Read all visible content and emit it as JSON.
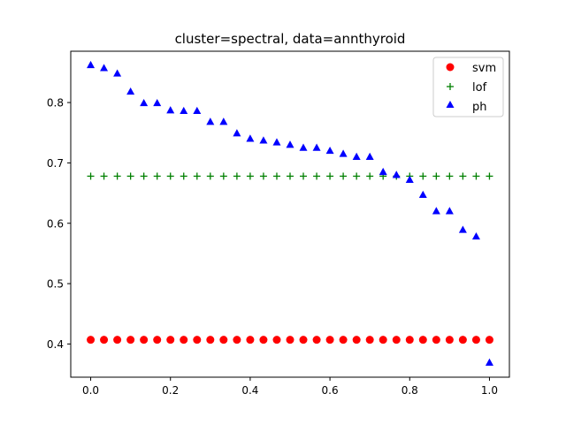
{
  "chart_data": {
    "type": "scatter",
    "title": "cluster=spectral, data=annthyroid",
    "xlabel": "",
    "ylabel": "",
    "xlim": [
      -0.05,
      1.05
    ],
    "ylim": [
      0.345,
      0.885
    ],
    "xticks": [
      "0.0",
      "0.2",
      "0.4",
      "0.6",
      "0.8",
      "1.0"
    ],
    "xtick_values": [
      0.0,
      0.2,
      0.4,
      0.6,
      0.8,
      1.0
    ],
    "yticks": [
      "0.4",
      "0.5",
      "0.6",
      "0.7",
      "0.8"
    ],
    "ytick_values": [
      0.4,
      0.5,
      0.6,
      0.7,
      0.8
    ],
    "grid": false,
    "legend_position": "top-right",
    "series": [
      {
        "name": "svm",
        "marker": "circle",
        "color": "#ff0000",
        "x": [
          0.0,
          0.0333,
          0.0667,
          0.1,
          0.1333,
          0.1667,
          0.2,
          0.2333,
          0.2667,
          0.3,
          0.3333,
          0.3667,
          0.4,
          0.4333,
          0.4667,
          0.5,
          0.5333,
          0.5667,
          0.6,
          0.6333,
          0.6667,
          0.7,
          0.7333,
          0.7667,
          0.8,
          0.8333,
          0.8667,
          0.9,
          0.9333,
          0.9667,
          1.0
        ],
        "y": [
          0.407,
          0.407,
          0.407,
          0.407,
          0.407,
          0.407,
          0.407,
          0.407,
          0.407,
          0.407,
          0.407,
          0.407,
          0.407,
          0.407,
          0.407,
          0.407,
          0.407,
          0.407,
          0.407,
          0.407,
          0.407,
          0.407,
          0.407,
          0.407,
          0.407,
          0.407,
          0.407,
          0.407,
          0.407,
          0.407,
          0.407
        ]
      },
      {
        "name": "lof",
        "marker": "plus",
        "color": "#008000",
        "x": [
          0.0,
          0.0333,
          0.0667,
          0.1,
          0.1333,
          0.1667,
          0.2,
          0.2333,
          0.2667,
          0.3,
          0.3333,
          0.3667,
          0.4,
          0.4333,
          0.4667,
          0.5,
          0.5333,
          0.5667,
          0.6,
          0.6333,
          0.6667,
          0.7,
          0.7333,
          0.7667,
          0.8,
          0.8333,
          0.8667,
          0.9,
          0.9333,
          0.9667,
          1.0
        ],
        "y": [
          0.678,
          0.678,
          0.678,
          0.678,
          0.678,
          0.678,
          0.678,
          0.678,
          0.678,
          0.678,
          0.678,
          0.678,
          0.678,
          0.678,
          0.678,
          0.678,
          0.678,
          0.678,
          0.678,
          0.678,
          0.678,
          0.678,
          0.678,
          0.678,
          0.678,
          0.678,
          0.678,
          0.678,
          0.678,
          0.678,
          0.678
        ]
      },
      {
        "name": "ph",
        "marker": "triangle",
        "color": "#0000ff",
        "x": [
          0.0,
          0.0333,
          0.0667,
          0.1,
          0.1333,
          0.1667,
          0.2,
          0.2333,
          0.2667,
          0.3,
          0.3333,
          0.3667,
          0.4,
          0.4333,
          0.4667,
          0.5,
          0.5333,
          0.5667,
          0.6,
          0.6333,
          0.6667,
          0.7,
          0.7333,
          0.7667,
          0.8,
          0.8333,
          0.8667,
          0.9,
          0.9333,
          0.9667,
          1.0
        ],
        "y": [
          0.862,
          0.857,
          0.848,
          0.818,
          0.799,
          0.799,
          0.787,
          0.786,
          0.786,
          0.768,
          0.768,
          0.749,
          0.74,
          0.737,
          0.734,
          0.73,
          0.725,
          0.725,
          0.72,
          0.715,
          0.71,
          0.71,
          0.685,
          0.68,
          0.672,
          0.647,
          0.62,
          0.62,
          0.589,
          0.578,
          0.369
        ]
      }
    ]
  }
}
